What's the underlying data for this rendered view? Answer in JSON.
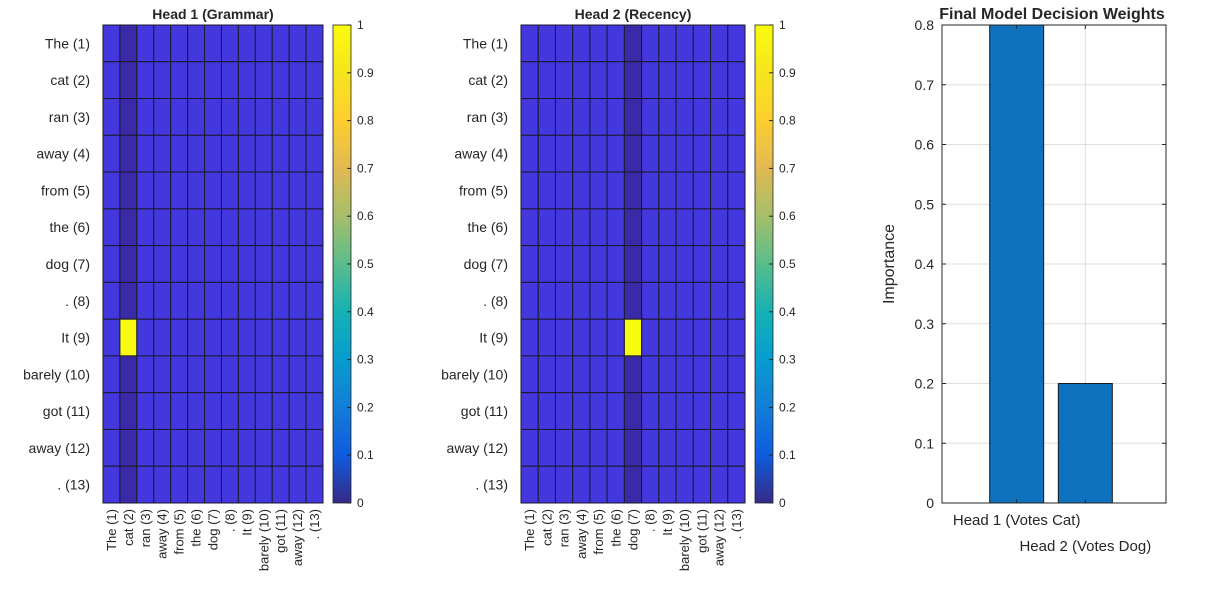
{
  "chart_data": [
    {
      "type": "heatmap",
      "title": "Head 1 (Grammar)",
      "row_labels": [
        "The (1)",
        "cat (2)",
        "ran (3)",
        "away (4)",
        "from (5)",
        "the (6)",
        "dog (7)",
        ". (8)",
        "It (9)",
        "barely (10)",
        "got (11)",
        "away (12)",
        ". (13)"
      ],
      "col_labels": [
        "The (1)",
        "cat (2)",
        "ran (3)",
        "away (4)",
        "from (5)",
        "the (6)",
        "dog (7)",
        ". (8)",
        "It (9)",
        "barely (10)",
        "got (11)",
        "away (12)",
        ". (13)"
      ],
      "base_value": 0.08,
      "low_column": 2,
      "low_value": 0.0,
      "peak": {
        "row": 9,
        "col": 2,
        "value": 1
      },
      "colorbar": {
        "range": [
          0,
          1
        ],
        "ticks": [
          "0",
          "0.1",
          "0.2",
          "0.3",
          "0.4",
          "0.5",
          "0.6",
          "0.7",
          "0.8",
          "0.9",
          "1"
        ],
        "colormap": "parula"
      }
    },
    {
      "type": "heatmap",
      "title": "Head 2 (Recency)",
      "row_labels": [
        "The (1)",
        "cat (2)",
        "ran (3)",
        "away (4)",
        "from (5)",
        "the (6)",
        "dog (7)",
        ". (8)",
        "It (9)",
        "barely (10)",
        "got (11)",
        "away (12)",
        ". (13)"
      ],
      "col_labels": [
        "The (1)",
        "cat (2)",
        "ran (3)",
        "away (4)",
        "from (5)",
        "the (6)",
        "dog (7)",
        ". (8)",
        "It (9)",
        "barely (10)",
        "got (11)",
        "away (12)",
        ". (13)"
      ],
      "base_value": 0.08,
      "low_column": 7,
      "low_value": 0.0,
      "peak": {
        "row": 9,
        "col": 7,
        "value": 1
      },
      "colorbar": {
        "range": [
          0,
          1
        ],
        "ticks": [
          "0",
          "0.1",
          "0.2",
          "0.3",
          "0.4",
          "0.5",
          "0.6",
          "0.7",
          "0.8",
          "0.9",
          "1"
        ],
        "colormap": "parula"
      }
    },
    {
      "type": "bar",
      "title": "Final Model Decision Weights",
      "categories": [
        "Head 1 (Votes Cat)",
        "Head 2 (Votes Dog)"
      ],
      "values": [
        0.8,
        0.2
      ],
      "xlabel": "",
      "ylabel": "Importance",
      "ylim": [
        0,
        0.8
      ],
      "yticks": [
        "0",
        "0.1",
        "0.2",
        "0.3",
        "0.4",
        "0.5",
        "0.6",
        "0.7",
        "0.8"
      ],
      "grid": true,
      "bar_color": "#0e72be"
    }
  ]
}
